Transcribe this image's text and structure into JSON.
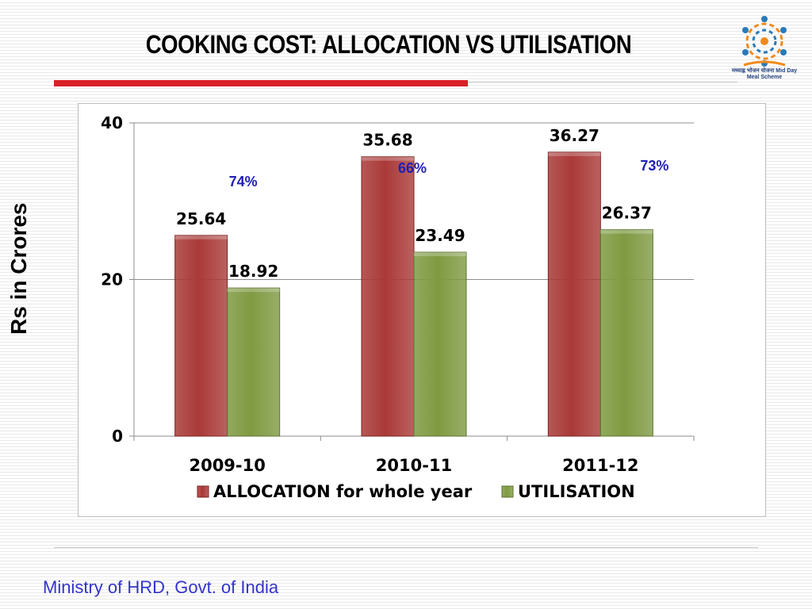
{
  "slide": {
    "title": "COOKING COST: ALLOCATION VS UTILISATION",
    "footer": "Ministry of HRD, Govt. of India",
    "logo_caption": "मध्याह्न भोजन योजना Mid Day Meal Scheme"
  },
  "colors": {
    "allocation": "#a93a38",
    "utilisation": "#7f9a42",
    "percent_text": "#1f1fb8",
    "title_rule": "#d92027"
  },
  "chart_data": {
    "type": "bar",
    "categories": [
      "2009-10",
      "2010-11",
      "2011-12"
    ],
    "series": [
      {
        "name": "ALLOCATION for whole year",
        "values": [
          25.64,
          35.68,
          36.27
        ]
      },
      {
        "name": "UTILISATION",
        "values": [
          18.92,
          23.49,
          26.37
        ]
      }
    ],
    "value_labels": [
      [
        "25.64",
        "35.68",
        "36.27"
      ],
      [
        "18.92",
        "23.49",
        "26.37"
      ]
    ],
    "annotations": [
      "74%",
      "66%",
      "73%"
    ],
    "ylabel": "Rs in Crores",
    "xlabel": "",
    "ylim": [
      0,
      40
    ],
    "yticks": [
      0,
      20,
      40
    ],
    "ytick_labels": [
      "0",
      "20",
      "40"
    ],
    "grid": true,
    "legend_position": "bottom"
  }
}
